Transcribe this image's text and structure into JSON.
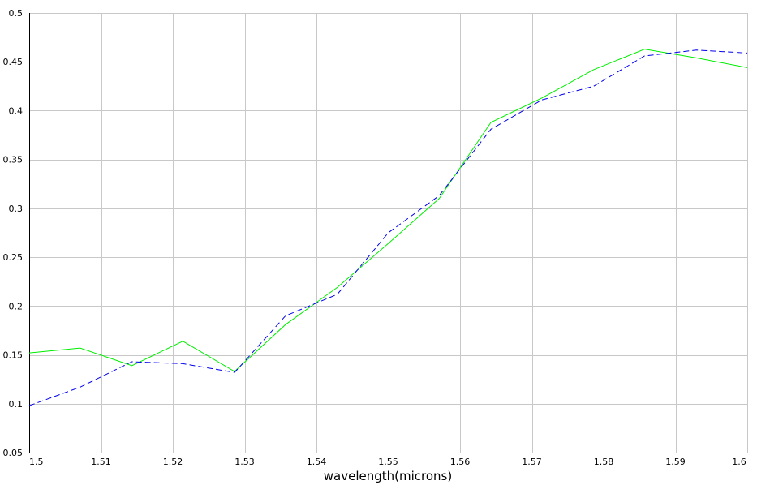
{
  "chart_data": {
    "type": "line",
    "title": "",
    "xlabel": "wavelength(microns)",
    "ylabel": "",
    "xlim": [
      1.5,
      1.6
    ],
    "ylim": [
      0.05,
      0.5
    ],
    "grid": true,
    "x_ticks": [
      1.5,
      1.51,
      1.52,
      1.53,
      1.54,
      1.55,
      1.56,
      1.57,
      1.58,
      1.59,
      1.6
    ],
    "x_tick_labels": [
      "1.5",
      "1.51",
      "1.52",
      "1.53",
      "1.54",
      "1.55",
      "1.56",
      "1.57",
      "1.58",
      "1.59",
      "1.6"
    ],
    "y_ticks": [
      0.05,
      0.1,
      0.15,
      0.2,
      0.25,
      0.3,
      0.35,
      0.4,
      0.45,
      0.5
    ],
    "y_tick_labels": [
      "0.05",
      "0.1",
      "0.15",
      "0.2",
      "0.25",
      "0.3",
      "0.35",
      "0.4",
      "0.45",
      "0.5"
    ],
    "series": [
      {
        "color": "#00ee00",
        "style": "solid",
        "x": [
          1.5,
          1.5071,
          1.5143,
          1.5214,
          1.5286,
          1.5357,
          1.5429,
          1.55,
          1.5571,
          1.5643,
          1.5714,
          1.5786,
          1.5857,
          1.5929,
          1.6
        ],
        "y": [
          0.152,
          0.157,
          0.139,
          0.164,
          0.133,
          0.181,
          0.219,
          0.264,
          0.31,
          0.388,
          0.413,
          0.442,
          0.463,
          0.454,
          0.444
        ]
      },
      {
        "color": "#0000ee",
        "style": "dashed",
        "x": [
          1.5,
          1.5071,
          1.5143,
          1.5214,
          1.5286,
          1.5357,
          1.5429,
          1.55,
          1.5571,
          1.5643,
          1.5714,
          1.5786,
          1.5857,
          1.5929,
          1.6
        ],
        "y": [
          0.098,
          0.117,
          0.143,
          0.141,
          0.132,
          0.19,
          0.212,
          0.275,
          0.313,
          0.381,
          0.411,
          0.425,
          0.456,
          0.462,
          0.459
        ]
      }
    ]
  }
}
